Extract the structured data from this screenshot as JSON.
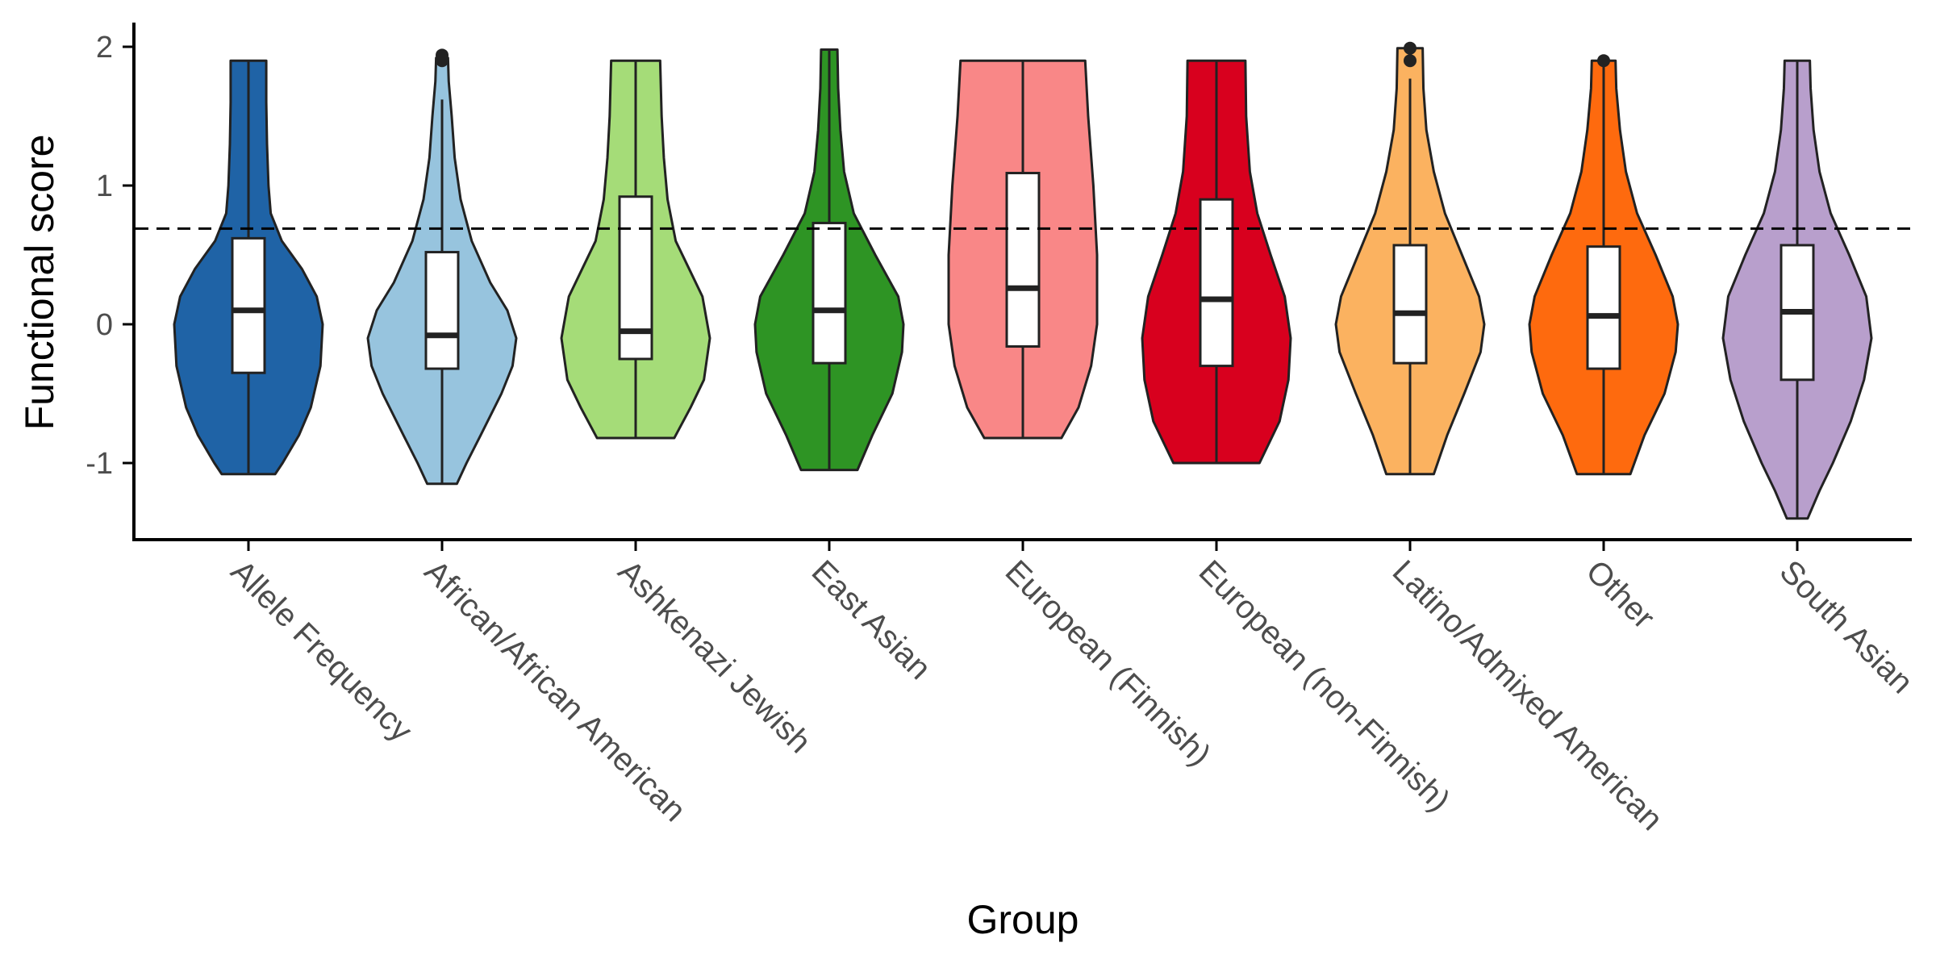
{
  "chart_data": {
    "type": "violin",
    "xlabel": "Group",
    "ylabel": "Functional score",
    "y_ticks": [
      "-1",
      "0",
      "1",
      "2"
    ],
    "y_tick_values": [
      -1,
      0,
      1,
      2
    ],
    "ylim": [
      -1.55,
      2.15
    ],
    "threshold": 0.69,
    "grid": false,
    "legend": "none",
    "groups": [
      {
        "label": "Allele Frequency",
        "color": "#1f63a6",
        "box": {
          "q1": -0.35,
          "median": 0.1,
          "q3": 0.62,
          "whisker_low": -1.08,
          "whisker_high": 1.9
        },
        "outliers": [],
        "density": [
          [
            -1.08,
            0.36
          ],
          [
            -1.0,
            0.46
          ],
          [
            -0.8,
            0.68
          ],
          [
            -0.6,
            0.84
          ],
          [
            -0.3,
            0.97
          ],
          [
            0.0,
            1.0
          ],
          [
            0.2,
            0.92
          ],
          [
            0.4,
            0.72
          ],
          [
            0.6,
            0.45
          ],
          [
            0.8,
            0.3
          ],
          [
            1.0,
            0.27
          ],
          [
            1.3,
            0.25
          ],
          [
            1.6,
            0.24
          ],
          [
            1.9,
            0.24
          ]
        ]
      },
      {
        "label": "African/African American",
        "color": "#97c4de",
        "box": {
          "q1": -0.32,
          "median": -0.08,
          "q3": 0.52,
          "whisker_low": -1.15,
          "whisker_high": 1.62
        },
        "outliers": [
          1.9,
          1.94
        ],
        "density": [
          [
            -1.15,
            0.2
          ],
          [
            -1.0,
            0.33
          ],
          [
            -0.8,
            0.52
          ],
          [
            -0.5,
            0.8
          ],
          [
            -0.3,
            0.95
          ],
          [
            -0.1,
            1.0
          ],
          [
            0.1,
            0.88
          ],
          [
            0.3,
            0.65
          ],
          [
            0.6,
            0.4
          ],
          [
            0.9,
            0.25
          ],
          [
            1.2,
            0.17
          ],
          [
            1.5,
            0.13
          ],
          [
            1.75,
            0.09
          ],
          [
            1.92,
            0.08
          ]
        ]
      },
      {
        "label": "Ashkenazi Jewish",
        "color": "#a5dc78",
        "box": {
          "q1": -0.25,
          "median": -0.05,
          "q3": 0.92,
          "whisker_low": -0.82,
          "whisker_high": 1.9
        },
        "outliers": [],
        "density": [
          [
            -0.82,
            0.52
          ],
          [
            -0.6,
            0.74
          ],
          [
            -0.4,
            0.92
          ],
          [
            -0.1,
            1.0
          ],
          [
            0.2,
            0.9
          ],
          [
            0.4,
            0.72
          ],
          [
            0.6,
            0.54
          ],
          [
            0.9,
            0.43
          ],
          [
            1.2,
            0.38
          ],
          [
            1.5,
            0.35
          ],
          [
            1.9,
            0.33
          ]
        ]
      },
      {
        "label": "East Asian",
        "color": "#2e9424",
        "box": {
          "q1": -0.28,
          "median": 0.1,
          "q3": 0.73,
          "whisker_low": -1.05,
          "whisker_high": 1.98
        },
        "outliers": [],
        "density": [
          [
            -1.05,
            0.38
          ],
          [
            -0.8,
            0.58
          ],
          [
            -0.5,
            0.85
          ],
          [
            -0.2,
            0.98
          ],
          [
            0.0,
            1.0
          ],
          [
            0.2,
            0.93
          ],
          [
            0.5,
            0.62
          ],
          [
            0.8,
            0.33
          ],
          [
            1.1,
            0.2
          ],
          [
            1.4,
            0.15
          ],
          [
            1.7,
            0.12
          ],
          [
            1.98,
            0.11
          ]
        ]
      },
      {
        "label": "European (Finnish)",
        "color": "#f98787",
        "box": {
          "q1": -0.16,
          "median": 0.26,
          "q3": 1.09,
          "whisker_low": -0.82,
          "whisker_high": 1.9
        },
        "outliers": [],
        "density": [
          [
            -0.82,
            0.52
          ],
          [
            -0.6,
            0.75
          ],
          [
            -0.3,
            0.92
          ],
          [
            0.0,
            1.0
          ],
          [
            0.5,
            1.0
          ],
          [
            1.0,
            0.95
          ],
          [
            1.5,
            0.88
          ],
          [
            1.9,
            0.84
          ]
        ]
      },
      {
        "label": "European (non-Finnish)",
        "color": "#d8001e",
        "box": {
          "q1": -0.3,
          "median": 0.18,
          "q3": 0.9,
          "whisker_low": -1.0,
          "whisker_high": 1.9
        },
        "outliers": [],
        "density": [
          [
            -1.0,
            0.58
          ],
          [
            -0.7,
            0.85
          ],
          [
            -0.4,
            0.97
          ],
          [
            -0.1,
            1.0
          ],
          [
            0.2,
            0.92
          ],
          [
            0.5,
            0.73
          ],
          [
            0.8,
            0.55
          ],
          [
            1.1,
            0.45
          ],
          [
            1.5,
            0.4
          ],
          [
            1.9,
            0.39
          ]
        ]
      },
      {
        "label": "Latino/Admixed American",
        "color": "#fbb260",
        "box": {
          "q1": -0.28,
          "median": 0.08,
          "q3": 0.57,
          "whisker_low": -1.08,
          "whisker_high": 1.77
        },
        "outliers": [
          1.9,
          1.99
        ],
        "density": [
          [
            -1.08,
            0.32
          ],
          [
            -0.8,
            0.5
          ],
          [
            -0.5,
            0.73
          ],
          [
            -0.2,
            0.95
          ],
          [
            0.0,
            1.0
          ],
          [
            0.2,
            0.93
          ],
          [
            0.5,
            0.7
          ],
          [
            0.8,
            0.47
          ],
          [
            1.1,
            0.32
          ],
          [
            1.4,
            0.22
          ],
          [
            1.7,
            0.18
          ],
          [
            1.99,
            0.17
          ]
        ]
      },
      {
        "label": "Other",
        "color": "#fe6a0e",
        "box": {
          "q1": -0.32,
          "median": 0.06,
          "q3": 0.56,
          "whisker_low": -1.08,
          "whisker_high": 1.9
        },
        "outliers": [
          1.9
        ],
        "density": [
          [
            -1.08,
            0.36
          ],
          [
            -0.8,
            0.55
          ],
          [
            -0.5,
            0.82
          ],
          [
            -0.2,
            0.97
          ],
          [
            0.0,
            1.0
          ],
          [
            0.2,
            0.93
          ],
          [
            0.5,
            0.7
          ],
          [
            0.8,
            0.45
          ],
          [
            1.1,
            0.3
          ],
          [
            1.4,
            0.22
          ],
          [
            1.7,
            0.17
          ],
          [
            1.9,
            0.16
          ]
        ]
      },
      {
        "label": "South Asian",
        "color": "#b89fcc",
        "box": {
          "q1": -0.4,
          "median": 0.09,
          "q3": 0.57,
          "whisker_low": -1.4,
          "whisker_high": 1.9
        },
        "outliers": [],
        "density": [
          [
            -1.4,
            0.14
          ],
          [
            -1.2,
            0.3
          ],
          [
            -1.0,
            0.48
          ],
          [
            -0.7,
            0.72
          ],
          [
            -0.4,
            0.9
          ],
          [
            -0.1,
            1.0
          ],
          [
            0.2,
            0.93
          ],
          [
            0.5,
            0.7
          ],
          [
            0.8,
            0.45
          ],
          [
            1.1,
            0.3
          ],
          [
            1.4,
            0.22
          ],
          [
            1.7,
            0.18
          ],
          [
            1.9,
            0.17
          ]
        ]
      }
    ]
  }
}
